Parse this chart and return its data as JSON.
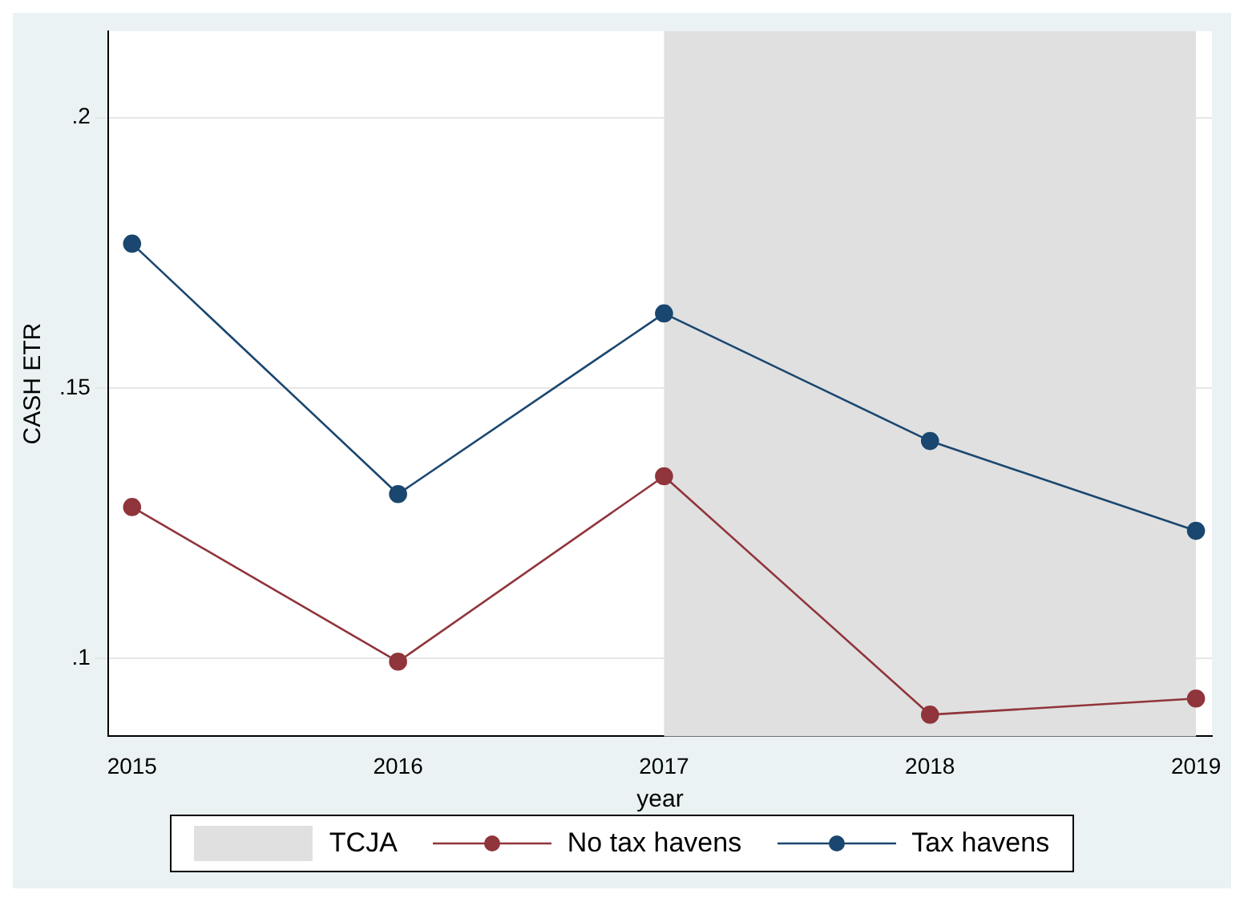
{
  "chart_data": {
    "type": "line",
    "xlabel": "year",
    "ylabel": "CASH ETR",
    "x": [
      2015,
      2016,
      2017,
      2018,
      2019
    ],
    "series": [
      {
        "name": "No tax havens",
        "color": "#90353b",
        "values": [
          0.128,
          0.0994,
          0.1337,
          0.0896,
          0.0926
        ]
      },
      {
        "name": "Tax havens",
        "color": "#1a476f",
        "values": [
          0.1767,
          0.1304,
          0.1638,
          0.1402,
          0.1236
        ]
      }
    ],
    "xlim": [
      2014.91,
      2019.06
    ],
    "xticks": [
      2015,
      2016,
      2017,
      2018,
      2019
    ],
    "ylim": [
      0.0856,
      0.216
    ],
    "yticks": [
      {
        "value": 0.1,
        "label": ".1"
      },
      {
        "value": 0.15,
        "label": ".15"
      },
      {
        "value": 0.2,
        "label": ".2"
      }
    ],
    "bands": [
      {
        "axis": "x",
        "from": 2017,
        "to": 2019,
        "label": "TCJA",
        "color": "#e0e0e0"
      }
    ],
    "grid": "y",
    "legend": "bottom",
    "marker": "circle",
    "line_style": "solid"
  }
}
